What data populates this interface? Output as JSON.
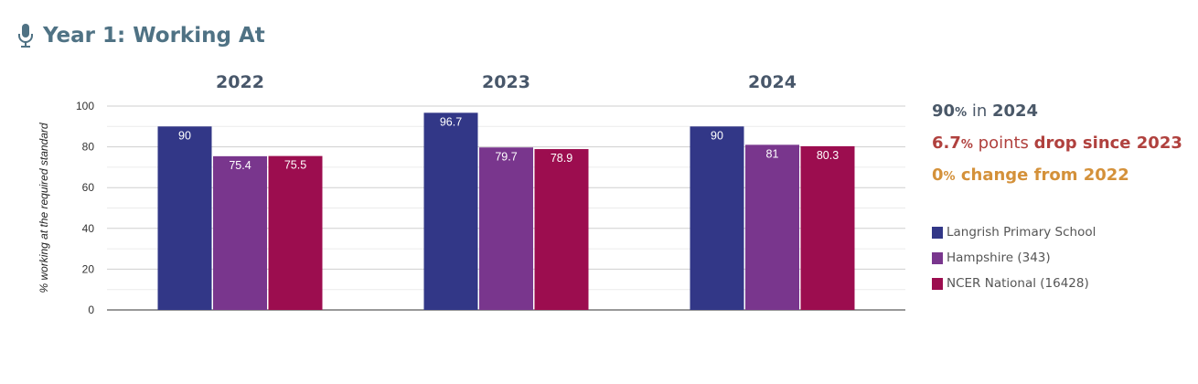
{
  "header": {
    "title": "Year 1: Working At",
    "icon": "microphone-icon"
  },
  "colors": {
    "school": "#323787",
    "hampshire": "#79368d",
    "national": "#9c0d4f",
    "title": "#4f7284"
  },
  "chart_data": {
    "type": "bar",
    "groups": [
      "2022",
      "2023",
      "2024"
    ],
    "series": [
      {
        "name": "Langrish Primary School",
        "values": [
          90,
          96.7,
          90
        ]
      },
      {
        "name": "Hampshire (343)",
        "values": [
          75.4,
          79.7,
          81
        ]
      },
      {
        "name": "NCER National (16428)",
        "values": [
          75.5,
          78.9,
          80.3
        ]
      }
    ],
    "value_labels": [
      [
        "90",
        "96.7",
        "90"
      ],
      [
        "75.4",
        "79.7",
        "81"
      ],
      [
        "75.5",
        "78.9",
        "80.3"
      ]
    ],
    "ylabel": "% working at the required standard",
    "ylim": [
      0,
      100
    ],
    "yticks": [
      0,
      20,
      40,
      60,
      80,
      100
    ],
    "grid": true,
    "legend": "right"
  },
  "summary": {
    "line1": {
      "value": "90",
      "pct": "%",
      "mid": " in ",
      "year": "2024"
    },
    "line2": {
      "value": "6.7",
      "pct": "%",
      "mid": " points ",
      "tail": "drop since 2023"
    },
    "line3": {
      "value": "0",
      "pct": "%",
      "tail": " change from 2022"
    }
  }
}
